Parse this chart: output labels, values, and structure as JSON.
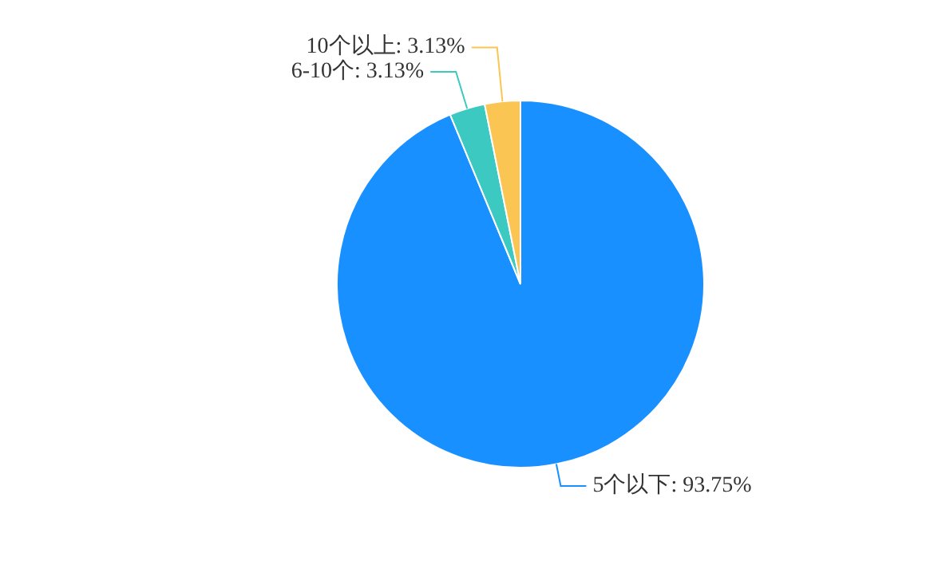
{
  "chart_data": {
    "type": "pie",
    "categories": [
      "5个以下",
      "6-10个",
      "10个以上"
    ],
    "values": [
      93.75,
      3.13,
      3.13
    ],
    "value_labels": [
      "93.75%",
      "3.13%",
      "3.13%"
    ],
    "colors": [
      "#1890ff",
      "#3cc9c1",
      "#fbc553"
    ],
    "legend": false
  }
}
